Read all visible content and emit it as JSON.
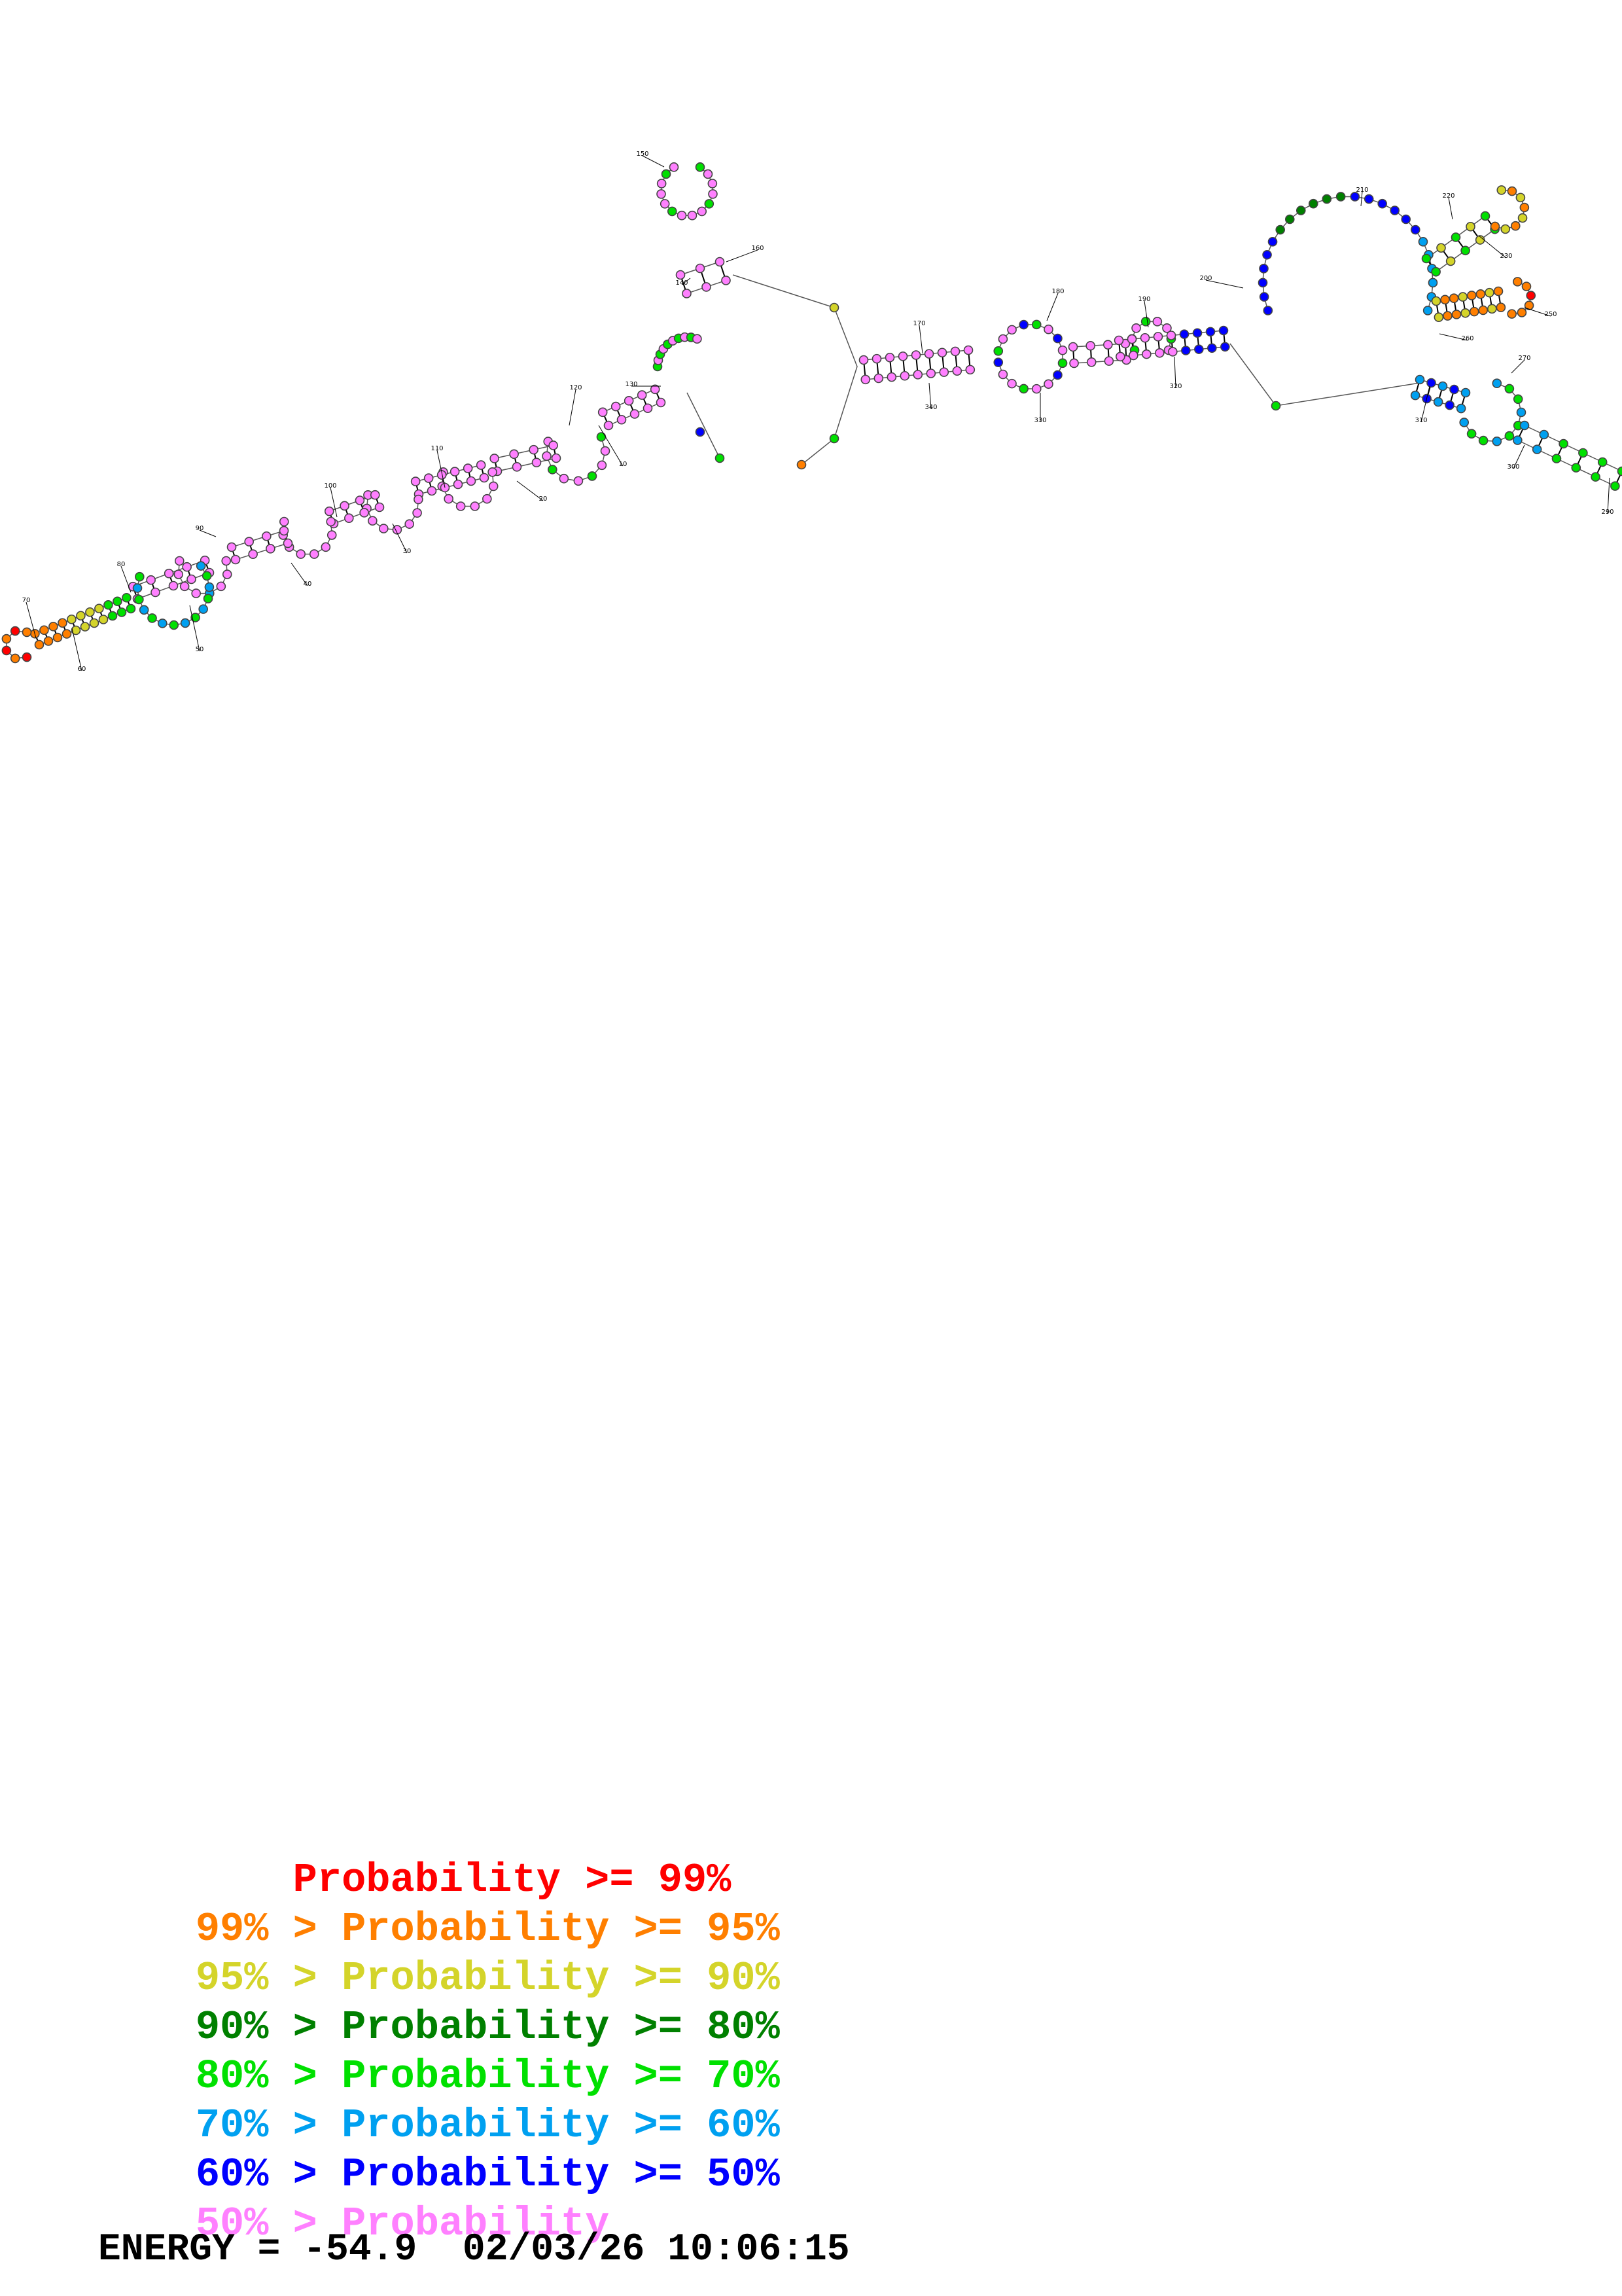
{
  "diagram": {
    "title": "",
    "base_numbers": [
      "10",
      "20",
      "30",
      "40",
      "50",
      "60",
      "70",
      "80",
      "90",
      "100",
      "110",
      "120",
      "130",
      "140",
      "150",
      "160",
      "170",
      "180",
      "190",
      "200",
      "210",
      "220",
      "230",
      "250",
      "260",
      "270",
      "290",
      "300",
      "310",
      "320",
      "330",
      "340"
    ],
    "colors": {
      "red": "#ff0000",
      "orange": "#ff7f00",
      "yellow": "#d4d42a",
      "darkgreen": "#008000",
      "green": "#00e000",
      "cyan": "#00a0f0",
      "blue": "#0000ff",
      "pink": "#ff80ff"
    }
  },
  "legend": [
    {
      "prefix": "    ",
      "text": "Probability >= 99%",
      "color": "#ff0000"
    },
    {
      "prefix": "99% > ",
      "text": "Probability >= 95%",
      "color": "#ff7f00"
    },
    {
      "prefix": "95% > ",
      "text": "Probability >= 90%",
      "color": "#d4d42a"
    },
    {
      "prefix": "90% > ",
      "text": "Probability >= 80%",
      "color": "#008000"
    },
    {
      "prefix": "80% > ",
      "text": "Probability >= 70%",
      "color": "#00e000"
    },
    {
      "prefix": "70% > ",
      "text": "Probability >= 60%",
      "color": "#00a0f0"
    },
    {
      "prefix": "60% > ",
      "text": "Probability >= 50%",
      "color": "#0000ff"
    },
    {
      "prefix": "50% > ",
      "text": "Probability",
      "color": "#ff80ff"
    }
  ],
  "energy_line": "ENERGY = -54.9  02/03/26 10:06:15"
}
